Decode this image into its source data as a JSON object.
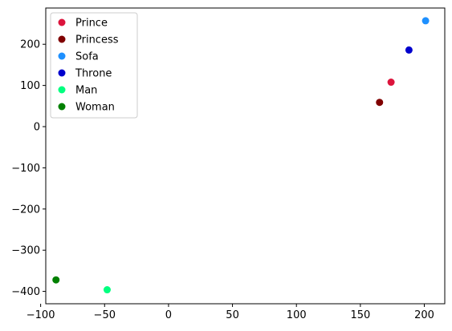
{
  "chart_data": {
    "type": "scatter",
    "title": "",
    "xlabel": "",
    "ylabel": "",
    "xlim": [
      -96,
      216
    ],
    "ylim": [
      -430,
      288
    ],
    "xticks": [
      -100,
      -50,
      0,
      50,
      100,
      150,
      200
    ],
    "yticks": [
      -400,
      -300,
      -200,
      -100,
      0,
      100,
      200
    ],
    "grid": false,
    "legend_position": "top-left",
    "series": [
      {
        "name": "Prince",
        "color": "#dc143c",
        "points": [
          {
            "x": 174,
            "y": 108
          }
        ]
      },
      {
        "name": "Princess",
        "color": "#800000",
        "points": [
          {
            "x": 165,
            "y": 59
          }
        ]
      },
      {
        "name": "Sofa",
        "color": "#1e90ff",
        "points": [
          {
            "x": 201,
            "y": 257
          }
        ]
      },
      {
        "name": "Throne",
        "color": "#0000cd",
        "points": [
          {
            "x": 188,
            "y": 186
          }
        ]
      },
      {
        "name": "Man",
        "color": "#00ff7f",
        "points": [
          {
            "x": -48,
            "y": -396
          }
        ]
      },
      {
        "name": "Woman",
        "color": "#008000",
        "points": [
          {
            "x": -88,
            "y": -372
          }
        ]
      }
    ]
  }
}
